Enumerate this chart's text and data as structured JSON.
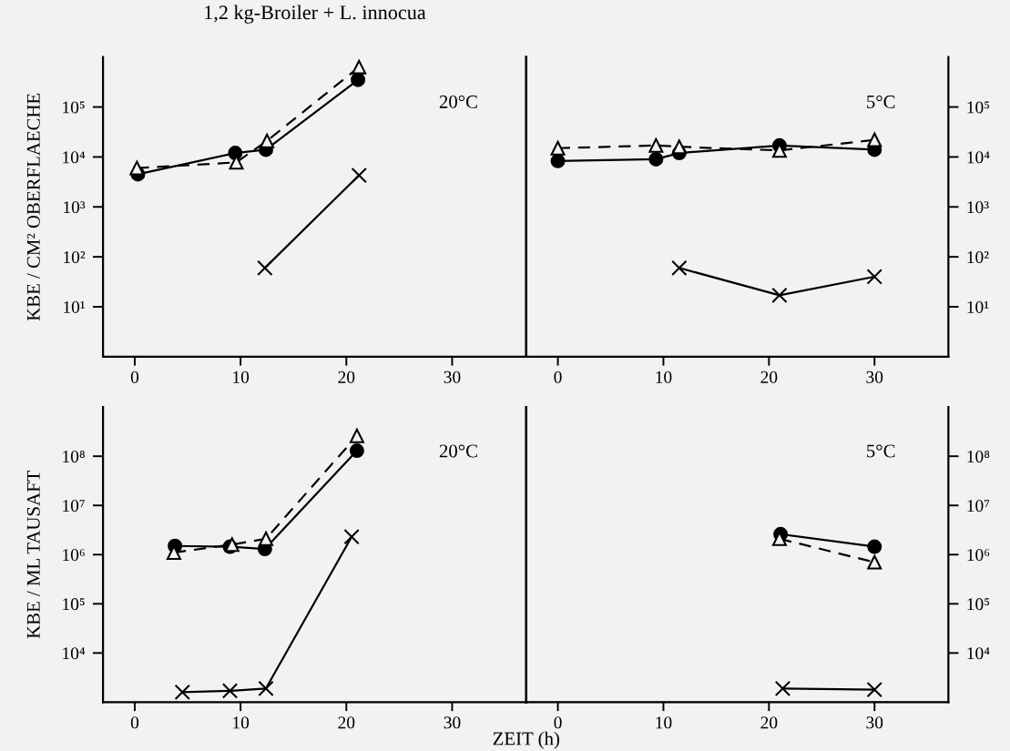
{
  "chart_data": [
    {
      "type": "line",
      "title": "1,2 kg-Broiler + L. innocua",
      "ylabel": "KBE / CM² OBERFLAECHE",
      "annotations": [
        "20°C"
      ],
      "xlim": [
        -3,
        37
      ],
      "xticks": [
        0,
        10,
        20,
        30
      ],
      "ylim": [
        1,
        1000000
      ],
      "yticks": [
        {
          "value": 10,
          "label": "10¹"
        },
        {
          "value": 100,
          "label": "10²"
        },
        {
          "value": 1000,
          "label": "10³"
        },
        {
          "value": 10000,
          "label": "10⁴"
        },
        {
          "value": 100000,
          "label": "10⁵"
        }
      ],
      "log": "y",
      "grid": false,
      "series": [
        {
          "color": "#000000",
          "marker": "circle",
          "line_style": "solid",
          "x": [
            0.3,
            9.5,
            12.4,
            21.1
          ],
          "values": [
            4500,
            12000,
            14000,
            350000
          ]
        },
        {
          "color": "#000000",
          "marker": "triangle",
          "line_style": "dashed",
          "x": [
            0.2,
            9.6,
            12.5,
            21.2
          ],
          "values": [
            6000,
            7800,
            21000,
            630000
          ]
        },
        {
          "color": "#000000",
          "marker": "cross",
          "line_style": "solid",
          "x": [
            12.3,
            21.2
          ],
          "values": [
            60,
            4300
          ]
        }
      ]
    },
    {
      "type": "line",
      "annotations": [
        "5°C"
      ],
      "xlim": [
        -3,
        37
      ],
      "xticks": [
        0,
        10,
        20,
        30
      ],
      "y2lim": [
        1,
        1000000
      ],
      "y2ticks": [
        {
          "value": 10,
          "label": "10¹"
        },
        {
          "value": 100,
          "label": "10²"
        },
        {
          "value": 1000,
          "label": "10³"
        },
        {
          "value": 10000,
          "label": "10⁴"
        },
        {
          "value": 100000,
          "label": "10⁵"
        }
      ],
      "log": "y2",
      "grid": false,
      "series": [
        {
          "color": "#000000",
          "marker": "circle",
          "line_style": "solid",
          "axis": "y2",
          "x": [
            0,
            9.3,
            11.5,
            21,
            30
          ],
          "values": [
            8300,
            9000,
            12000,
            17000,
            14000
          ]
        },
        {
          "color": "#000000",
          "marker": "triangle",
          "line_style": "dashed",
          "axis": "y2",
          "x": [
            0,
            9.3,
            11.5,
            21,
            30
          ],
          "values": [
            15000,
            17000,
            16000,
            13500,
            22000
          ]
        },
        {
          "color": "#000000",
          "marker": "cross",
          "line_style": "solid",
          "axis": "y2",
          "x": [
            11.5,
            21,
            30
          ],
          "values": [
            60,
            17,
            40
          ]
        }
      ]
    },
    {
      "type": "line",
      "ylabel": "KBE / ML TAUSAFT",
      "xlabel": "ZEIT (h)",
      "annotations": [
        "20°C"
      ],
      "xlim": [
        -3,
        37
      ],
      "xticks": [
        0,
        10,
        20,
        30
      ],
      "ylim": [
        1000,
        1000000000
      ],
      "yticks": [
        {
          "value": 10000,
          "label": "10⁴"
        },
        {
          "value": 100000,
          "label": "10⁵"
        },
        {
          "value": 1000000,
          "label": "10⁶"
        },
        {
          "value": 10000000,
          "label": "10⁷"
        },
        {
          "value": 100000000,
          "label": "10⁸"
        }
      ],
      "log": "y",
      "grid": false,
      "series": [
        {
          "color": "#000000",
          "marker": "circle",
          "line_style": "solid",
          "x": [
            3.8,
            9.0,
            12.3,
            21
          ],
          "values": [
            1500000,
            1450000,
            1300000,
            130000000
          ]
        },
        {
          "color": "#000000",
          "marker": "triangle",
          "line_style": "dashed",
          "x": [
            3.7,
            9.2,
            12.4,
            21
          ],
          "values": [
            1100000,
            1600000,
            2100000,
            260000000
          ]
        },
        {
          "color": "#000000",
          "marker": "cross",
          "line_style": "solid",
          "x": [
            4.5,
            9.0,
            12.4,
            20.5
          ],
          "values": [
            1600,
            1700,
            1900,
            2300000
          ]
        }
      ]
    },
    {
      "type": "line",
      "annotations": [
        "5°C"
      ],
      "xlim": [
        -3,
        37
      ],
      "xticks": [
        0,
        10,
        20,
        30
      ],
      "y2lim": [
        1000,
        1000000000
      ],
      "y2ticks": [
        {
          "value": 10000,
          "label": "10⁴"
        },
        {
          "value": 100000,
          "label": "10⁵"
        },
        {
          "value": 1000000,
          "label": "10⁶"
        },
        {
          "value": 10000000,
          "label": "10⁷"
        },
        {
          "value": 100000000,
          "label": "10⁸"
        }
      ],
      "log": "y2",
      "grid": false,
      "series": [
        {
          "color": "#000000",
          "marker": "circle",
          "line_style": "solid",
          "axis": "y2",
          "x": [
            21.1,
            30
          ],
          "values": [
            2600000,
            1450000
          ]
        },
        {
          "color": "#000000",
          "marker": "triangle",
          "line_style": "dashed",
          "axis": "y2",
          "x": [
            21,
            30
          ],
          "values": [
            2100000,
            700000
          ]
        },
        {
          "color": "#000000",
          "marker": "cross",
          "line_style": "solid",
          "axis": "y2",
          "x": [
            21.3,
            30
          ],
          "values": [
            1900,
            1800
          ]
        }
      ]
    }
  ]
}
